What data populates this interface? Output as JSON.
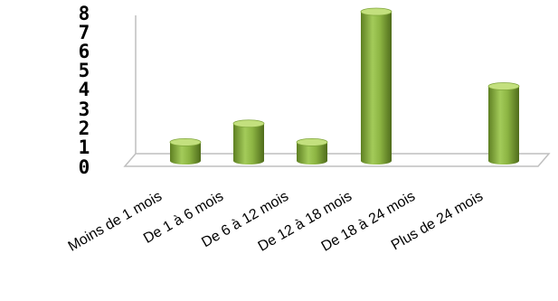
{
  "chart_data": {
    "type": "bar",
    "title": "",
    "xlabel": "",
    "ylabel": "",
    "ylim": [
      0,
      8
    ],
    "yticks": [
      "0",
      "1",
      "2",
      "3",
      "4",
      "5",
      "6",
      "7",
      "8"
    ],
    "categories": [
      "Moins de 1 mois",
      "De 1 à 6 mois",
      "De 6 à 12 mois",
      "De 12 à 18 mois",
      "De 18 à 24 mois",
      "Plus de 24 mois"
    ],
    "values": [
      1,
      2,
      1,
      8,
      0,
      4
    ],
    "grid": false,
    "style": "3d-cylinder",
    "colors": {
      "bar": "#8db543",
      "bar_dark": "#5e7f22",
      "bar_light": "#c3e07e",
      "axis": "#bfbfbf"
    }
  }
}
